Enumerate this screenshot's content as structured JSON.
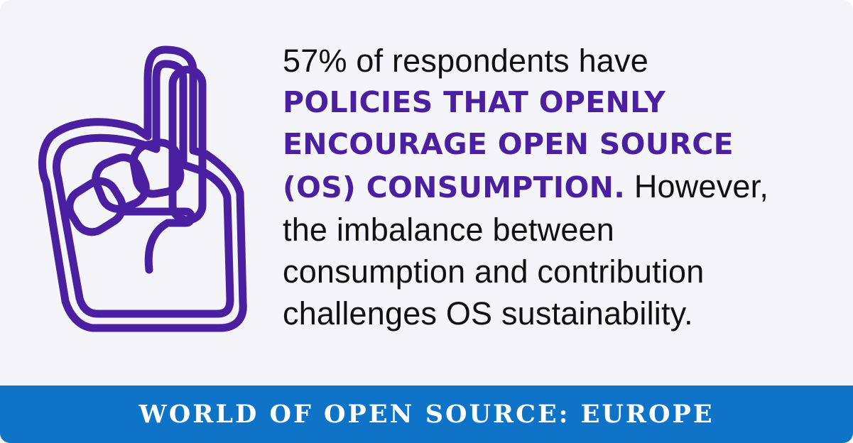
{
  "statement": {
    "line1": "57% of respondents have",
    "emphasis_line1": "POLICIES THAT OPENLY",
    "emphasis_line2": "ENCOURAGE OPEN SOURCE",
    "emphasis_line3": "(OS) CONSUMPTION.",
    "line3_tail": " However,",
    "line4": "the imbalance between",
    "line5": "consumption and contribution",
    "line6": "challenges OS sustainability."
  },
  "footer": {
    "title": "WORLD OF OPEN SOURCE: EUROPE"
  },
  "icon": "foam-finger-hand-icon",
  "colors": {
    "accent_purple": "#4a1fa0",
    "footer_blue": "#0f73c8",
    "background": "#f4f4f9",
    "text": "#111111"
  }
}
